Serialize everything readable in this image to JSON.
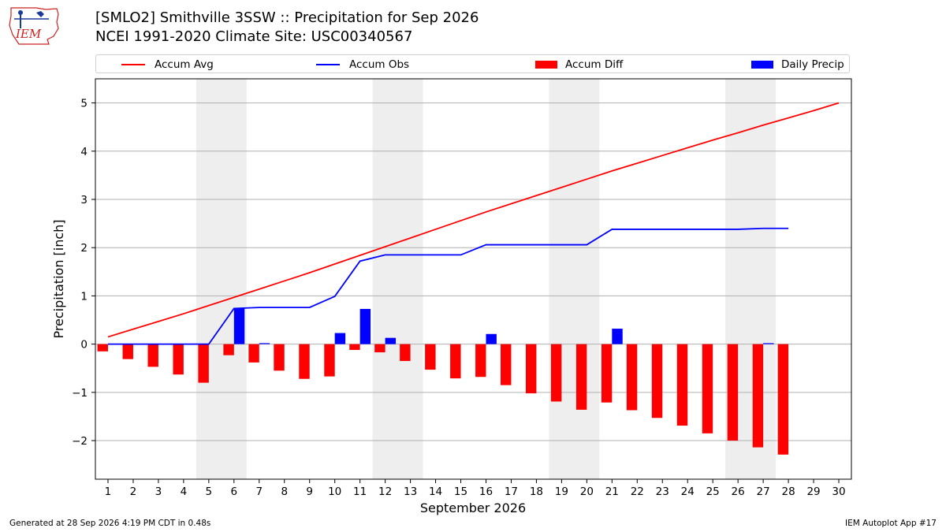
{
  "header": {
    "logo_text": "IEM",
    "title_line1": "[SMLO2] Smithville 3SSW :: Precipitation for Sep 2026",
    "title_line2": "NCEI 1991-2020 Climate Site: USC00340567"
  },
  "legend": {
    "placement": "top",
    "items": [
      {
        "label": "Accum Avg",
        "kind": "line",
        "color": "#ff0000"
      },
      {
        "label": "Accum Obs",
        "kind": "line",
        "color": "#0000ff"
      },
      {
        "label": "Accum Diff",
        "kind": "patch",
        "color": "#ff0000"
      },
      {
        "label": "Daily Precip",
        "kind": "patch",
        "color": "#0000ff"
      }
    ]
  },
  "footer": {
    "left": "Generated at 28 Sep 2026 4:19 PM CDT in 0.48s",
    "right": "IEM Autoplot App #17"
  },
  "colors": {
    "avg": "#ff0000",
    "obs": "#0000ff",
    "diff": "#ff0000",
    "daily": "#0000ff",
    "weekend": "#eeeeee",
    "grid": "#b0b0b0"
  },
  "chart_data": {
    "type": "bar",
    "xlabel": "September 2026",
    "ylabel": "Precipitation [inch]",
    "xlim": [
      0.5,
      30.5
    ],
    "ylim": [
      -2.8,
      5.5
    ],
    "yticks": [
      -2,
      -1,
      0,
      1,
      2,
      3,
      4,
      5
    ],
    "ytick_labels": [
      "−2",
      "−1",
      "0",
      "1",
      "2",
      "3",
      "4",
      "5"
    ],
    "days": [
      1,
      2,
      3,
      4,
      5,
      6,
      7,
      8,
      9,
      10,
      11,
      12,
      13,
      14,
      15,
      16,
      17,
      18,
      19,
      20,
      21,
      22,
      23,
      24,
      25,
      26,
      27,
      28,
      29,
      30
    ],
    "weekend_spans": [
      [
        4.5,
        6.5
      ],
      [
        11.5,
        13.5
      ],
      [
        18.5,
        20.5
      ],
      [
        25.5,
        27.5
      ]
    ],
    "grid": true,
    "series": [
      {
        "name": "Accum Avg",
        "type": "line",
        "values": [
          0.15,
          0.31,
          0.47,
          0.63,
          0.8,
          0.97,
          1.14,
          1.31,
          1.48,
          1.66,
          1.84,
          2.02,
          2.2,
          2.38,
          2.56,
          2.74,
          2.91,
          3.08,
          3.25,
          3.42,
          3.59,
          3.75,
          3.91,
          4.07,
          4.23,
          4.38,
          4.54,
          4.69,
          4.84,
          5.0
        ]
      },
      {
        "name": "Accum Obs",
        "type": "line",
        "values": [
          0.0,
          0.0,
          0.0,
          0.0,
          0.0,
          0.74,
          0.76,
          0.76,
          0.76,
          0.99,
          1.72,
          1.85,
          1.85,
          1.85,
          1.85,
          2.06,
          2.06,
          2.06,
          2.06,
          2.06,
          2.38,
          2.38,
          2.38,
          2.38,
          2.38,
          2.38,
          2.4,
          2.4,
          null,
          null
        ]
      },
      {
        "name": "Accum Diff",
        "type": "bar",
        "values": [
          -0.15,
          -0.31,
          -0.47,
          -0.63,
          -0.8,
          -0.23,
          -0.38,
          -0.55,
          -0.72,
          -0.67,
          -0.12,
          -0.17,
          -0.35,
          -0.53,
          -0.71,
          -0.68,
          -0.85,
          -1.02,
          -1.19,
          -1.36,
          -1.21,
          -1.37,
          -1.53,
          -1.69,
          -1.85,
          -2.0,
          -2.14,
          -2.29,
          null,
          null
        ]
      },
      {
        "name": "Daily Precip",
        "type": "bar",
        "values": [
          0,
          0,
          0,
          0,
          0,
          0.74,
          0.02,
          0,
          0,
          0.23,
          0.73,
          0.13,
          0,
          0,
          0,
          0.21,
          0,
          0,
          0,
          0,
          0.32,
          0,
          0,
          0,
          0,
          0,
          0.02,
          0,
          null,
          null
        ]
      }
    ]
  }
}
